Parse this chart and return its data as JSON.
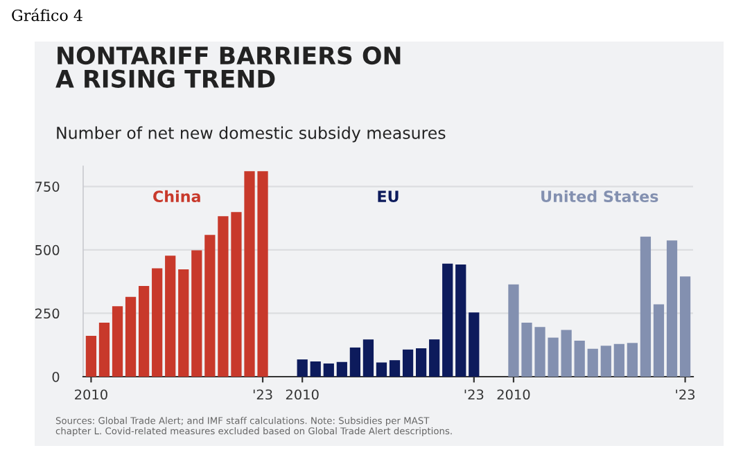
{
  "chart_data": {
    "type": "bar",
    "title": "NONTARIFF BARRIERS ON\nA RISING TREND",
    "subtitle": "Number of net new domestic subsidy measures",
    "annotations": [
      "Gráfico 4",
      "Sources: Global Trade Alert; and IMF staff calculations. Note: Subsidies per MAST\nchapter L. Covid-related measures excluded based on Global Trade Alert descriptions."
    ],
    "categories": [
      "2010",
      null,
      null,
      null,
      null,
      null,
      null,
      null,
      null,
      null,
      null,
      null,
      null,
      "'23",
      null,
      null,
      "2010",
      null,
      null,
      null,
      null,
      null,
      null,
      null,
      null,
      null,
      null,
      null,
      null,
      "'23",
      null,
      null,
      "2010",
      null,
      null,
      null,
      null,
      null,
      null,
      null,
      null,
      null,
      null,
      null,
      null,
      "'23"
    ],
    "series": [
      {
        "name": "China",
        "color": "#c8392b",
        "values": [
          161,
          213,
          278,
          315,
          358,
          427,
          477,
          423,
          498,
          559,
          633,
          649,
          810,
          810,
          null,
          null,
          null,
          null,
          null,
          null,
          null,
          null,
          null,
          null,
          null,
          null,
          null,
          null,
          null,
          null,
          null,
          null,
          null,
          null,
          null,
          null,
          null,
          null,
          null,
          null,
          null,
          null,
          null,
          null,
          null,
          null
        ]
      },
      {
        "name": "EU",
        "color": "#0d1b5c",
        "values": [
          null,
          null,
          null,
          null,
          null,
          null,
          null,
          null,
          null,
          null,
          null,
          null,
          null,
          null,
          null,
          null,
          68,
          60,
          52,
          58,
          115,
          147,
          56,
          65,
          107,
          112,
          147,
          446,
          442,
          253,
          null,
          null,
          null,
          null,
          null,
          null,
          null,
          null,
          null,
          null,
          null,
          null,
          null,
          null,
          null,
          null
        ]
      },
      {
        "name": "United States",
        "color": "#8390b0",
        "values": [
          null,
          null,
          null,
          null,
          null,
          null,
          null,
          null,
          null,
          null,
          null,
          null,
          null,
          null,
          null,
          null,
          null,
          null,
          null,
          null,
          null,
          null,
          null,
          null,
          null,
          null,
          null,
          null,
          null,
          null,
          null,
          null,
          364,
          213,
          196,
          154,
          184,
          142,
          110,
          122,
          129,
          133,
          552,
          285,
          537,
          395
        ]
      }
    ],
    "ylim": [
      0,
      830
    ],
    "yticks": [
      0,
      250,
      500,
      750
    ],
    "grid": "y"
  }
}
